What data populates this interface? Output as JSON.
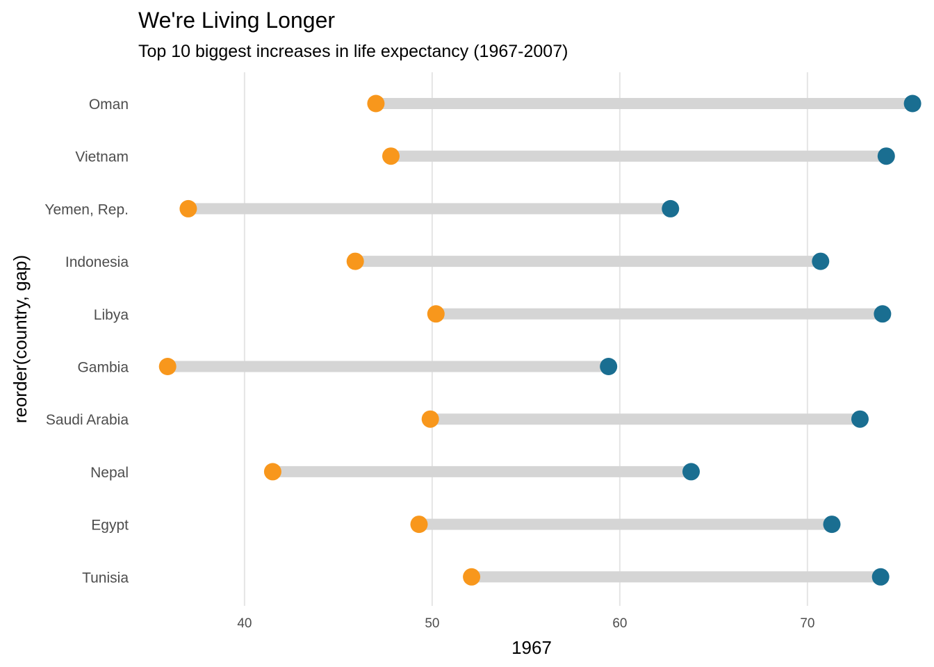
{
  "chart_data": {
    "type": "dumbbell",
    "title": "We're Living Longer",
    "subtitle": "Top 10 biggest increases in life expectancy (1967-2007)",
    "xlabel": "1967",
    "ylabel": "reorder(country, gap)",
    "xlim": [
      34.3,
      76.3
    ],
    "x_ticks": [
      40,
      50,
      60,
      70
    ],
    "grid": "vertical-major",
    "legend": "none",
    "colors": {
      "start": "#f8971c",
      "end": "#1a6e91",
      "segment": "#d5d5d5",
      "grid": "#e5e5e5"
    },
    "series": [
      {
        "field": "start"
      },
      {
        "field": "end"
      }
    ],
    "categories": [
      "Oman",
      "Vietnam",
      "Yemen, Rep.",
      "Indonesia",
      "Libya",
      "Gambia",
      "Saudi Arabia",
      "Nepal",
      "Egypt",
      "Tunisia"
    ],
    "rows": [
      {
        "country": "Oman",
        "start": 47.0,
        "end": 75.6
      },
      {
        "country": "Vietnam",
        "start": 47.8,
        "end": 74.2
      },
      {
        "country": "Yemen, Rep.",
        "start": 37.0,
        "end": 62.7
      },
      {
        "country": "Indonesia",
        "start": 45.9,
        "end": 70.7
      },
      {
        "country": "Libya",
        "start": 50.2,
        "end": 74.0
      },
      {
        "country": "Gambia",
        "start": 35.9,
        "end": 59.4
      },
      {
        "country": "Saudi Arabia",
        "start": 49.9,
        "end": 72.8
      },
      {
        "country": "Nepal",
        "start": 41.5,
        "end": 63.8
      },
      {
        "country": "Egypt",
        "start": 49.3,
        "end": 71.3
      },
      {
        "country": "Tunisia",
        "start": 52.1,
        "end": 73.9
      }
    ]
  }
}
